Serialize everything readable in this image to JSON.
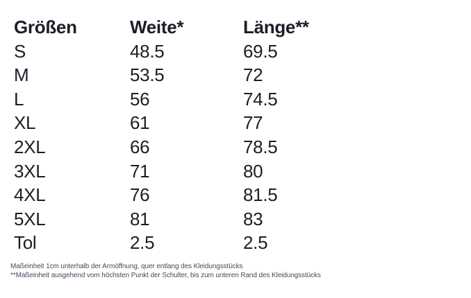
{
  "table": {
    "headers": [
      "Größen",
      "Weite*",
      "Länge**"
    ],
    "rows": [
      [
        "S",
        "48.5",
        "69.5"
      ],
      [
        "M",
        "53.5",
        "72"
      ],
      [
        "L",
        "56",
        "74.5"
      ],
      [
        "XL",
        "61",
        "77"
      ],
      [
        "2XL",
        "66",
        "78.5"
      ],
      [
        "3XL",
        "71",
        "80"
      ],
      [
        "4XL",
        "76",
        "81.5"
      ],
      [
        "5XL",
        "81",
        "83"
      ],
      [
        "Tol",
        "2.5",
        "2.5"
      ]
    ]
  },
  "footnotes": [
    "Maßeinheit 1cm unterhalb der Armöffnung, quer entlang des Kleidungsstücks",
    "**Maßeinheit ausgehend vom höchsten Punkt der Schulter, bis zum unteren Rand des Kleidungsstücks"
  ],
  "colors": {
    "background": "#ffffff",
    "table_text": "#1d1d27",
    "footnote_text": "#474b59"
  }
}
